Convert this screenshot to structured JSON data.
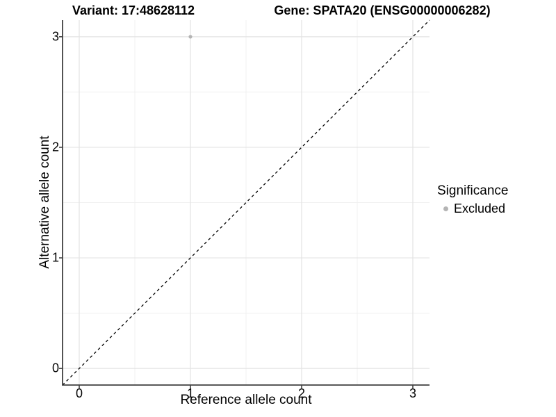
{
  "chart_data": {
    "type": "scatter",
    "title_variant": "Variant: 17:48628112",
    "title_gene": "Gene: SPATA20 (ENSG00000006282)",
    "xlabel": "Reference allele count",
    "ylabel": "Alternative allele count",
    "xlim": [
      -0.15,
      3.15
    ],
    "ylim": [
      -0.15,
      3.15
    ],
    "xticks": [
      0,
      1,
      2,
      3
    ],
    "yticks": [
      0,
      1,
      2,
      3
    ],
    "xticks_minor": [
      0.5,
      1.5,
      2.5
    ],
    "yticks_minor": [
      0.5,
      1.5,
      2.5
    ],
    "grid": "major+minor",
    "series": [
      {
        "name": "Excluded",
        "color": "#b4b4b4",
        "points": [
          [
            1,
            3
          ]
        ]
      }
    ],
    "identity_line": {
      "style": "dashed",
      "color": "#000000",
      "from": [
        -0.15,
        -0.15
      ],
      "to": [
        3.15,
        3.15
      ]
    },
    "legend": {
      "title": "Significance",
      "position": "right",
      "entries": [
        {
          "label": "Excluded",
          "color": "#b4b4b4"
        }
      ]
    },
    "colors": {
      "axis": "#404040",
      "grid_major": "#e3e3e3",
      "grid_minor": "#f0f0f0",
      "background": "#ffffff"
    }
  }
}
